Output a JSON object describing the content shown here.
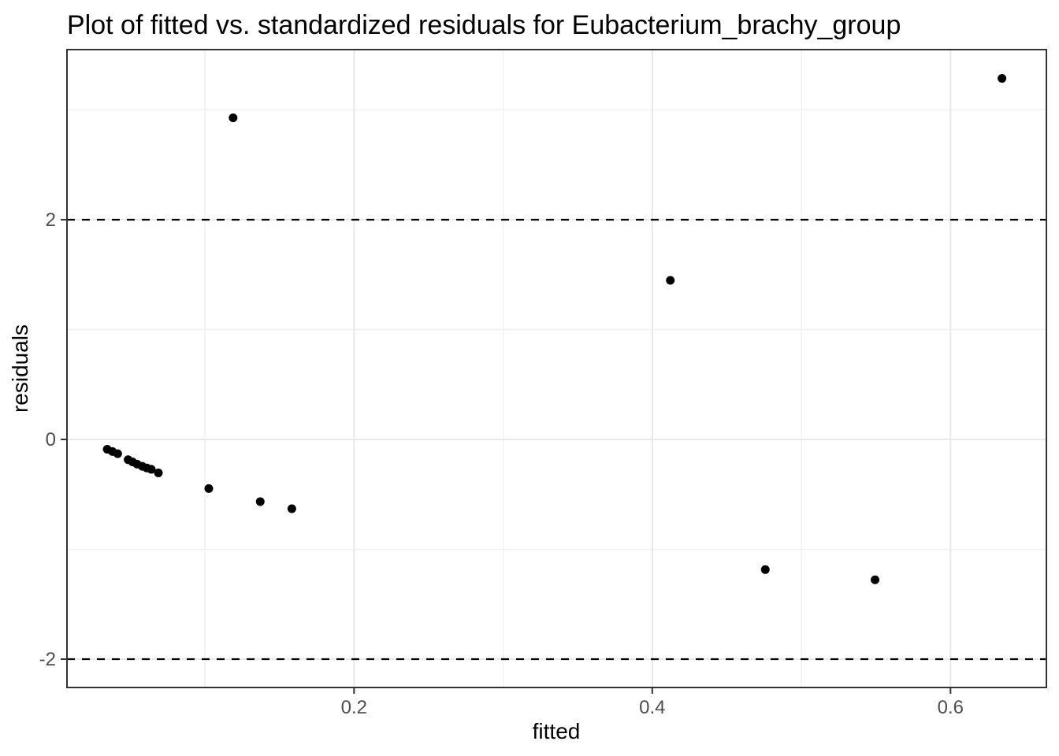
{
  "figure": {
    "background": "#ffffff"
  },
  "chart_data": {
    "type": "scatter",
    "title": "Plot of fitted vs. standardized residuals for Eubacterium_brachy_group",
    "xlabel": "fitted",
    "ylabel": "residuals",
    "legend": "none",
    "grid": "on",
    "xlim": [
      0.0075,
      0.6643
    ],
    "ylim": [
      -2.258,
      3.548
    ],
    "x_major_ticks": [
      0.2,
      0.4,
      0.6
    ],
    "x_tick_labels": [
      "0.2",
      "0.4",
      "0.6"
    ],
    "x_minor_ticks": [
      0.1,
      0.3,
      0.5
    ],
    "y_major_ticks": [
      -2,
      0,
      2
    ],
    "y_tick_labels": [
      "-2",
      "0",
      "2"
    ],
    "y_minor_ticks": [
      -1,
      1,
      3
    ],
    "reference_lines": [
      {
        "y": 2,
        "style": "dashed",
        "color": "#000000"
      },
      {
        "y": -2,
        "style": "dashed",
        "color": "#000000"
      }
    ],
    "series": [
      {
        "name": "standardized residuals",
        "marker": "filled-circle",
        "color": "#000000",
        "points": [
          [
            0.0345,
            -0.09
          ],
          [
            0.038,
            -0.11
          ],
          [
            0.0415,
            -0.13
          ],
          [
            0.0485,
            -0.185
          ],
          [
            0.0515,
            -0.205
          ],
          [
            0.0545,
            -0.225
          ],
          [
            0.058,
            -0.245
          ],
          [
            0.061,
            -0.26
          ],
          [
            0.064,
            -0.272
          ],
          [
            0.0688,
            -0.305
          ],
          [
            0.1026,
            -0.447
          ],
          [
            0.1189,
            2.927
          ],
          [
            0.1371,
            -0.566
          ],
          [
            0.1583,
            -0.631
          ],
          [
            0.4121,
            1.448
          ],
          [
            0.4758,
            -1.185
          ],
          [
            0.5494,
            -1.278
          ],
          [
            0.6345,
            3.286
          ]
        ]
      }
    ],
    "colors": {
      "point": "#000000",
      "panel_border": "#333333",
      "major_grid": "#e8e8e8",
      "minor_grid": "#f0f0f0",
      "axis_text": "#4d4d4d",
      "tick_mark": "#333333",
      "reference_line": "#000000",
      "panel_background": "#ffffff"
    }
  }
}
